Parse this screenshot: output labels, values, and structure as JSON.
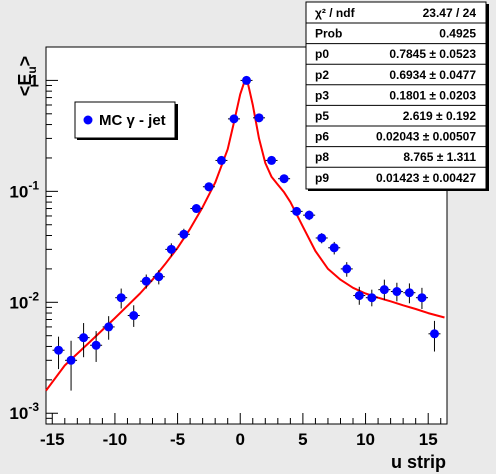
{
  "chart_data": {
    "type": "scatter",
    "xlabel": "u strip",
    "ylabel": "<E",
    "ylabel_sub": "u",
    "ylabel_end": ">",
    "xlim": [
      -15.5,
      16.5
    ],
    "ylim": [
      0.0008,
      2.0
    ],
    "yscale": "log",
    "grid": false,
    "x_ticks": [
      -15,
      -10,
      -5,
      0,
      5,
      10,
      15
    ],
    "x_tick_labels": [
      "-15",
      "-10",
      "-5",
      "0",
      "5",
      "10",
      "15"
    ],
    "y_ticks": [
      0.001,
      0.01,
      0.1,
      1
    ],
    "y_tick_labels": [
      {
        "base": "10",
        "exp": "-3"
      },
      {
        "base": "10",
        "exp": "-2"
      },
      {
        "base": "10",
        "exp": "-1"
      },
      {
        "base": "1",
        "exp": ""
      }
    ],
    "legend": {
      "entries": [
        {
          "symbol": "●",
          "text": "MC γ - jet"
        }
      ]
    },
    "series": [
      {
        "name": "MC γ - jet",
        "color": "#0000ff",
        "x": [
          -14.5,
          -13.5,
          -12.5,
          -11.5,
          -10.5,
          -9.5,
          -8.5,
          -7.5,
          -6.5,
          -5.5,
          -4.5,
          -3.5,
          -2.5,
          -1.5,
          -0.5,
          0.5,
          1.5,
          2.5,
          3.5,
          4.5,
          5.5,
          6.5,
          7.5,
          8.5,
          9.5,
          10.5,
          11.5,
          12.5,
          13.5,
          14.5,
          15.5
        ],
        "y": [
          0.0037,
          0.003,
          0.0048,
          0.0041,
          0.006,
          0.011,
          0.0076,
          0.0155,
          0.017,
          0.03,
          0.041,
          0.07,
          0.11,
          0.19,
          0.45,
          1.0,
          0.46,
          0.19,
          0.13,
          0.066,
          0.061,
          0.038,
          0.031,
          0.02,
          0.0115,
          0.011,
          0.013,
          0.0125,
          0.0122,
          0.011,
          0.0052
        ],
        "y_low": [
          0.0025,
          0.0016,
          0.0032,
          0.0029,
          0.0046,
          0.0088,
          0.006,
          0.0133,
          0.0145,
          0.026,
          0.037,
          0.064,
          0.1,
          0.18,
          0.43,
          0.98,
          0.44,
          0.18,
          0.122,
          0.061,
          0.055,
          0.034,
          0.027,
          0.017,
          0.0095,
          0.0092,
          0.0105,
          0.0102,
          0.0098,
          0.0087,
          0.0036
        ],
        "y_high": [
          0.0049,
          0.0045,
          0.0065,
          0.0055,
          0.0075,
          0.0133,
          0.0094,
          0.0178,
          0.0195,
          0.034,
          0.046,
          0.076,
          0.12,
          0.2,
          0.47,
          1.02,
          0.48,
          0.2,
          0.138,
          0.071,
          0.067,
          0.042,
          0.035,
          0.023,
          0.0138,
          0.013,
          0.016,
          0.015,
          0.0148,
          0.0135,
          0.0068
        ]
      }
    ],
    "fit": {
      "name": "fit",
      "color": "#ff0000",
      "x": [
        -15.5,
        -14,
        -12,
        -10,
        -8,
        -7,
        -6,
        -5,
        -4,
        -3,
        -2,
        -1,
        -0.5,
        0,
        0.3,
        0.6,
        1,
        1.5,
        2,
        2.5,
        3,
        3.5,
        4,
        5,
        6,
        7,
        8,
        9,
        10,
        11,
        12,
        13,
        14,
        15,
        16.3
      ],
      "y": [
        0.0016,
        0.0027,
        0.0044,
        0.0072,
        0.012,
        0.016,
        0.022,
        0.031,
        0.046,
        0.072,
        0.12,
        0.24,
        0.42,
        0.75,
        0.95,
        0.95,
        0.6,
        0.3,
        0.18,
        0.135,
        0.115,
        0.098,
        0.08,
        0.048,
        0.029,
        0.02,
        0.016,
        0.0135,
        0.012,
        0.011,
        0.0102,
        0.0094,
        0.0087,
        0.008,
        0.0073
      ]
    },
    "stats": [
      {
        "label": "χ² / ndf",
        "value": "23.47 / 24"
      },
      {
        "label": "Prob",
        "value": "0.4925"
      },
      {
        "label": "p0",
        "value": "0.7845 ± 0.0523"
      },
      {
        "label": "p2",
        "value": "0.6934 ± 0.0477"
      },
      {
        "label": "p3",
        "value": "0.1801 ± 0.0203"
      },
      {
        "label": "p5",
        "value": "2.619 ± 0.192"
      },
      {
        "label": "p6",
        "value": "0.02043 ± 0.00507"
      },
      {
        "label": "p8",
        "value": "8.765 ± 1.311"
      },
      {
        "label": "p9",
        "value": "0.01423 ± 0.00427"
      }
    ]
  }
}
